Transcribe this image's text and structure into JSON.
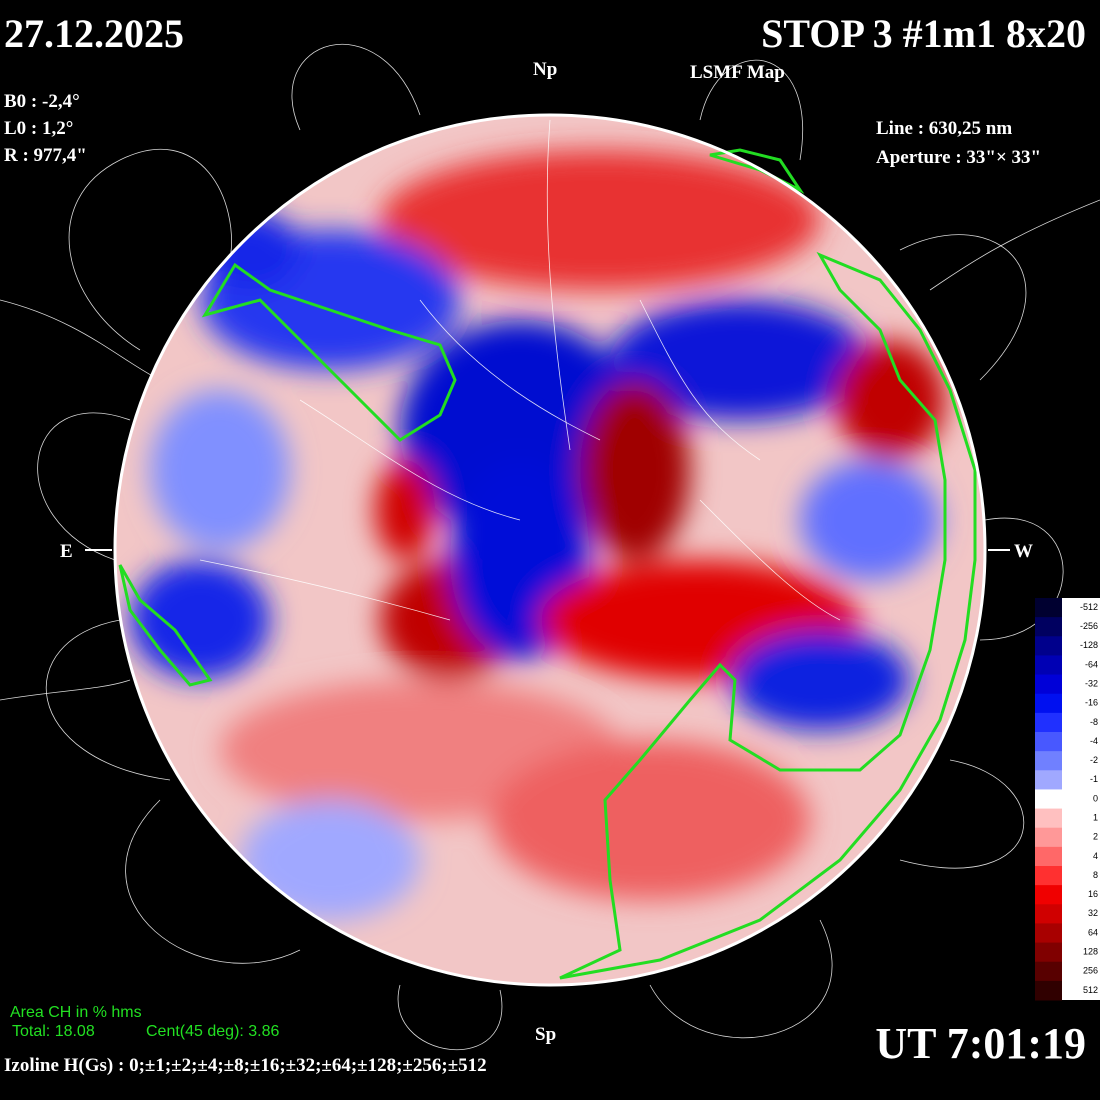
{
  "header": {
    "date": "27.12.2025",
    "title": "STOP 3 #1m1 8x20",
    "subtitle": "LSMF  Map"
  },
  "ephemeris": [
    "B0 : -2,4°",
    "L0 : 1,2°",
    "R  : 977,4\""
  ],
  "instrument": [
    "Line :  630,25 nm",
    "Aperture : 33\"× 33\""
  ],
  "directions": {
    "north": "Np",
    "south": "Sp",
    "east": "E",
    "west": "W"
  },
  "coronal_holes": {
    "title": "Area CH in % hms",
    "total": "Total: 18.08",
    "central": "Cent(45 deg): 3.86"
  },
  "time": "UT 7:01:19",
  "isolines": "Izoline H(Gs) : 0;±1;±2;±4;±8;±16;±32;±64;±128;±256;±512",
  "colorbar": {
    "ticks": [
      -512,
      -256,
      -128,
      -64,
      -32,
      -16,
      -8,
      -4,
      -2,
      -1,
      0,
      1,
      2,
      4,
      8,
      16,
      32,
      64,
      128,
      256,
      512
    ],
    "colors": [
      "#000030",
      "#000060",
      "#00008c",
      "#0000b4",
      "#0000d8",
      "#0010f0",
      "#2030ff",
      "#4858ff",
      "#7080ff",
      "#a0a8ff",
      "#ffffff",
      "#ffc0c0",
      "#ff9898",
      "#ff6868",
      "#ff3030",
      "#f00000",
      "#d00000",
      "#a80000",
      "#800000",
      "#580000",
      "#300000"
    ]
  }
}
